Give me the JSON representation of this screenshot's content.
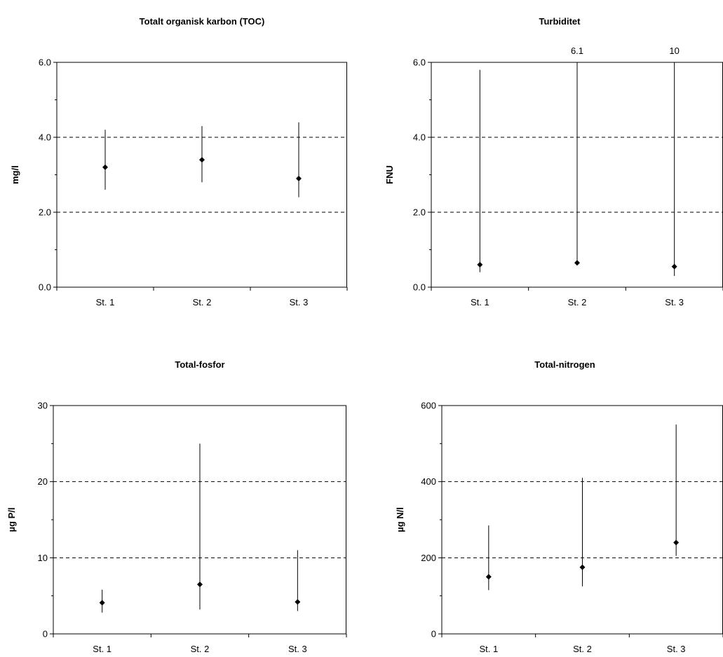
{
  "chart_data": [
    {
      "type": "scatter",
      "title": "Totalt organisk karbon (TOC)",
      "ylabel": "mg/l",
      "ylim": [
        0,
        6
      ],
      "yticks": [
        "0.0",
        "2.0",
        "4.0",
        "6.0"
      ],
      "dashed_gridlines": [
        2,
        4
      ],
      "categories": [
        "St. 1",
        "St. 2",
        "St. 3"
      ],
      "values": [
        3.2,
        3.4,
        2.9
      ],
      "min": [
        2.6,
        2.8,
        2.4
      ],
      "max": [
        4.2,
        4.3,
        4.4
      ],
      "annotations": []
    },
    {
      "type": "scatter",
      "title": "Turbiditet",
      "ylabel": "FNU",
      "ylim": [
        0,
        6
      ],
      "yticks": [
        "0.0",
        "2.0",
        "4.0",
        "6.0"
      ],
      "dashed_gridlines": [
        2,
        4
      ],
      "categories": [
        "St. 1",
        "St. 2",
        "St. 3"
      ],
      "values": [
        0.6,
        0.65,
        0.55
      ],
      "min": [
        0.4,
        0.6,
        0.3
      ],
      "max": [
        5.8,
        6.1,
        10
      ],
      "annotations": [
        {
          "category_index": 1,
          "text": "6.1"
        },
        {
          "category_index": 2,
          "text": "10"
        }
      ]
    },
    {
      "type": "scatter",
      "title": "Total-fosfor",
      "ylabel": "µg P/l",
      "ylim": [
        0,
        30
      ],
      "yticks": [
        "0",
        "10",
        "20",
        "30"
      ],
      "dashed_gridlines": [
        10,
        20
      ],
      "categories": [
        "St. 1",
        "St. 2",
        "St. 3"
      ],
      "values": [
        4.1,
        6.5,
        4.2
      ],
      "min": [
        2.8,
        3.2,
        3.0
      ],
      "max": [
        5.8,
        25,
        11
      ],
      "annotations": []
    },
    {
      "type": "scatter",
      "title": "Total-nitrogen",
      "ylabel": "µg N/l",
      "ylim": [
        0,
        600
      ],
      "yticks": [
        "0",
        "200",
        "400",
        "600"
      ],
      "dashed_gridlines": [
        200,
        400
      ],
      "categories": [
        "St. 1",
        "St. 2",
        "St. 3"
      ],
      "values": [
        150,
        175,
        240
      ],
      "min": [
        115,
        125,
        205
      ],
      "max": [
        285,
        410,
        550
      ],
      "annotations": []
    }
  ]
}
